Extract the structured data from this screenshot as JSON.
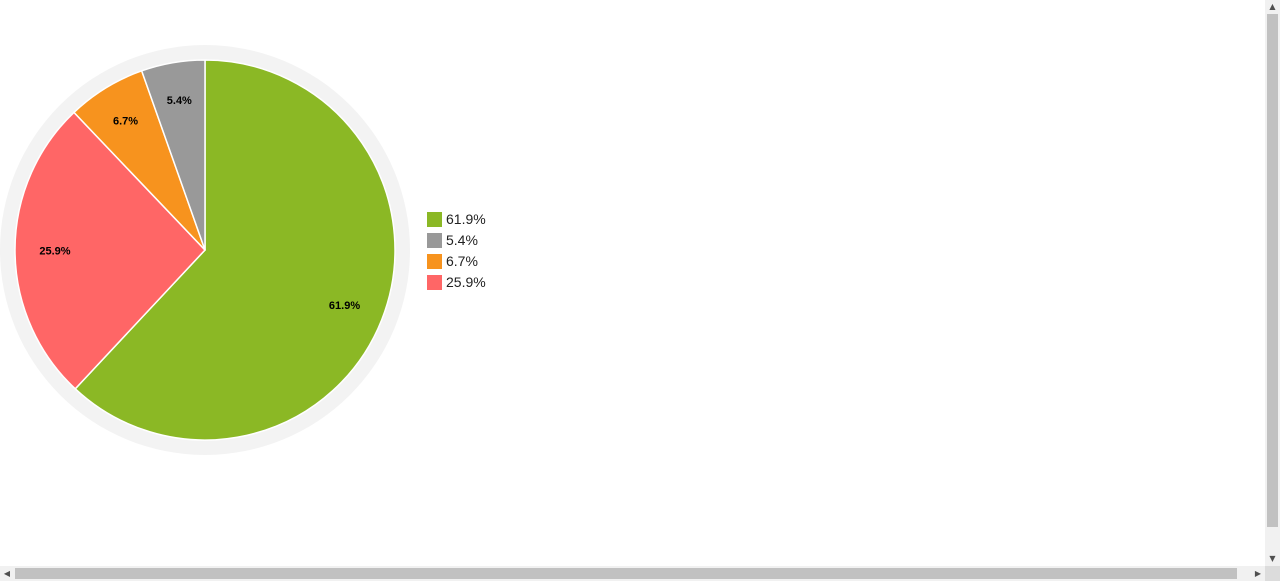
{
  "chart_data": {
    "type": "pie",
    "title": "",
    "slices": [
      {
        "label": "61.9%",
        "value": 61.9,
        "color": "#8bb825"
      },
      {
        "label": "25.9%",
        "value": 25.9,
        "color": "#ff6666"
      },
      {
        "label": "6.7%",
        "value": 6.7,
        "color": "#f7931e"
      },
      {
        "label": "5.4%",
        "value": 5.4,
        "color": "#999999"
      }
    ],
    "legend": {
      "position": "right",
      "items": [
        {
          "label": "61.9%",
          "color": "#8bb825"
        },
        {
          "label": "5.4%",
          "color": "#999999"
        },
        {
          "label": "6.7%",
          "color": "#f7931e"
        },
        {
          "label": "25.9%",
          "color": "#ff6666"
        }
      ]
    },
    "ring_color": "#f3f3f3"
  },
  "scrollbars": {
    "up_icon": "▲",
    "down_icon": "▼",
    "left_icon": "◀",
    "right_icon": "▶"
  }
}
